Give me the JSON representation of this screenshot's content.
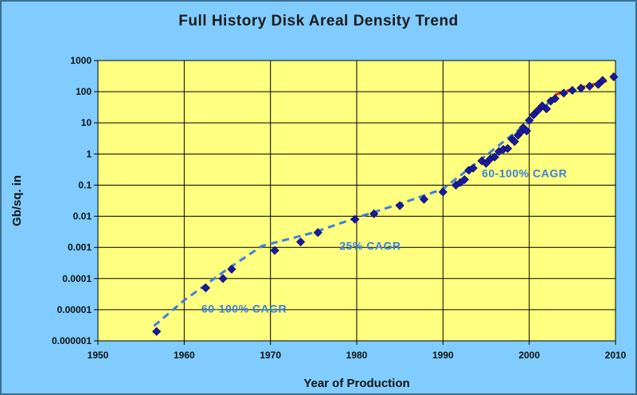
{
  "chart_data": {
    "type": "scatter",
    "title": "Full History Disk Areal Density Trend",
    "xlabel": "Year of Production",
    "ylabel": "Gb/sq. in",
    "xlim": [
      1950,
      2010
    ],
    "ylim": [
      1e-06,
      1000
    ],
    "y_scale": "log",
    "x_ticks": [
      "1950",
      "1960",
      "1970",
      "1980",
      "1990",
      "2000",
      "2010"
    ],
    "y_ticks": [
      "0.000001",
      "0.00001",
      "0.0001",
      "0.001",
      "0.01",
      "0.1",
      "1",
      "10",
      "100",
      "1000"
    ],
    "grid": true,
    "colors": {
      "plot_background": "#ffff80",
      "points": "#1a1aa0",
      "trend": "#3a7fe0",
      "recent_trend": "#e02020",
      "annotation": "#3a7fe0"
    },
    "series": [
      {
        "values": [
          [
            1956.8,
            2e-06
          ],
          [
            1962.5,
            5e-05
          ],
          [
            1964.5,
            0.0001
          ],
          [
            1965.5,
            0.0002
          ],
          [
            1970.5,
            0.0008
          ],
          [
            1973.5,
            0.0015
          ],
          [
            1975.5,
            0.003
          ],
          [
            1979.8,
            0.008
          ],
          [
            1982.0,
            0.012
          ],
          [
            1985.0,
            0.022
          ],
          [
            1987.8,
            0.035
          ],
          [
            1990.0,
            0.06
          ],
          [
            1991.5,
            0.1
          ],
          [
            1992.0,
            0.12
          ],
          [
            1992.5,
            0.15
          ],
          [
            1993.0,
            0.3
          ],
          [
            1993.5,
            0.35
          ],
          [
            1994.5,
            0.6
          ],
          [
            1995.0,
            0.5
          ],
          [
            1995.5,
            0.7
          ],
          [
            1996.0,
            0.8
          ],
          [
            1996.5,
            1.2
          ],
          [
            1997.0,
            1.4
          ],
          [
            1997.5,
            1.5
          ],
          [
            1998.0,
            3
          ],
          [
            1998.3,
            2.5
          ],
          [
            1998.7,
            4
          ],
          [
            1999.0,
            5
          ],
          [
            1999.3,
            7
          ],
          [
            1999.7,
            5.5
          ],
          [
            2000.0,
            12
          ],
          [
            2000.5,
            18
          ],
          [
            2001.0,
            25
          ],
          [
            2001.5,
            35
          ],
          [
            2002.0,
            28
          ],
          [
            2002.5,
            50
          ],
          [
            2003.0,
            60
          ],
          [
            2004.0,
            90
          ],
          [
            2005.0,
            110
          ],
          [
            2006.0,
            130
          ],
          [
            2007.0,
            150
          ],
          [
            2008.0,
            170
          ],
          [
            2008.5,
            230
          ],
          [
            2009.8,
            300
          ]
        ]
      }
    ],
    "trend_lines": [
      {
        "style": "dashed",
        "color": "#3a7fe0",
        "points": [
          [
            1956.5,
            3e-06
          ],
          [
            1960,
            2e-05
          ],
          [
            1965,
            0.0002
          ],
          [
            1969,
            0.0011
          ],
          [
            1975,
            0.003
          ],
          [
            1980,
            0.009
          ],
          [
            1985,
            0.025
          ],
          [
            1990,
            0.075
          ],
          [
            1995,
            0.9
          ],
          [
            2000,
            11
          ],
          [
            2003,
            70
          ]
        ]
      },
      {
        "style": "dashed",
        "color": "#e02020",
        "points": [
          [
            2003,
            80
          ],
          [
            2005,
            120
          ],
          [
            2007,
            160
          ],
          [
            2009,
            220
          ]
        ]
      }
    ],
    "annotations": [
      {
        "text": "60-100% CAGR",
        "x": 1962,
        "y": 8e-06
      },
      {
        "text": "25% CAGR",
        "x": 1978,
        "y": 0.00085
      },
      {
        "text": "60-100% CAGR",
        "x": 1994.5,
        "y": 0.18
      }
    ]
  }
}
